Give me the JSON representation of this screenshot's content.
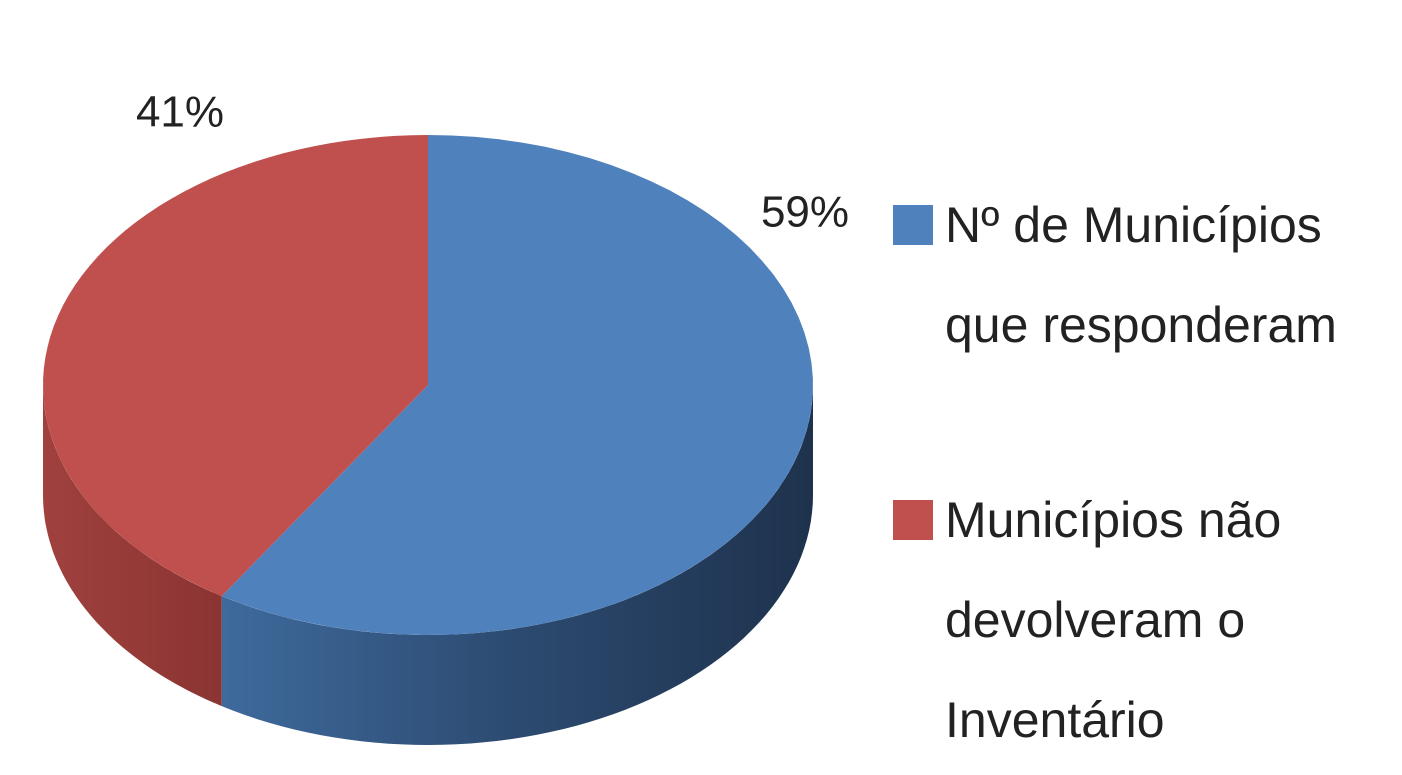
{
  "chart_data": {
    "type": "pie",
    "categories": [
      "Nº de Municípios que responderam",
      "Municípios não devolveram o Inventário"
    ],
    "values": [
      59,
      41
    ],
    "value_labels": [
      "59%",
      "41%"
    ],
    "colors": [
      "#4f81bd",
      "#c0504d"
    ],
    "legend": "right"
  }
}
